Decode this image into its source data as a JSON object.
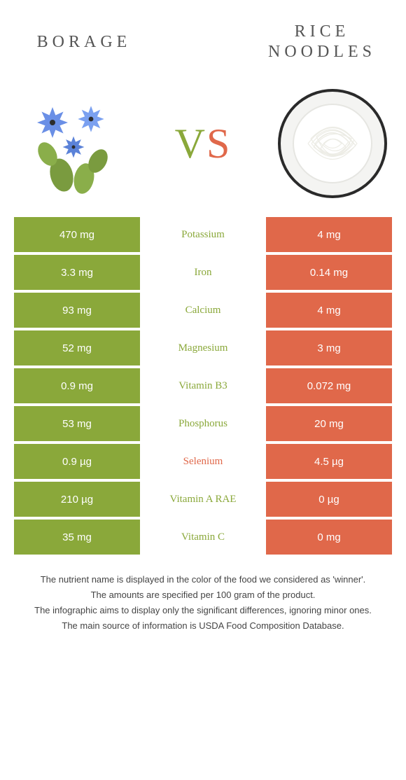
{
  "colors": {
    "left": "#8aa83a",
    "right": "#e0684a",
    "title": "#555555",
    "foot": "#444444",
    "bg": "#ffffff"
  },
  "header": {
    "left_title": "BORAGE",
    "right_title": "RICE NOODLES",
    "vs_v": "V",
    "vs_s": "S"
  },
  "rows": [
    {
      "nutrient": "Potassium",
      "left": "470 mg",
      "right": "4 mg",
      "winner": "left"
    },
    {
      "nutrient": "Iron",
      "left": "3.3 mg",
      "right": "0.14 mg",
      "winner": "left"
    },
    {
      "nutrient": "Calcium",
      "left": "93 mg",
      "right": "4 mg",
      "winner": "left"
    },
    {
      "nutrient": "Magnesium",
      "left": "52 mg",
      "right": "3 mg",
      "winner": "left"
    },
    {
      "nutrient": "Vitamin B3",
      "left": "0.9 mg",
      "right": "0.072 mg",
      "winner": "left"
    },
    {
      "nutrient": "Phosphorus",
      "left": "53 mg",
      "right": "20 mg",
      "winner": "left"
    },
    {
      "nutrient": "Selenium",
      "left": "0.9 µg",
      "right": "4.5 µg",
      "winner": "right"
    },
    {
      "nutrient": "Vitamin A RAE",
      "left": "210 µg",
      "right": "0 µg",
      "winner": "left"
    },
    {
      "nutrient": "Vitamin C",
      "left": "35 mg",
      "right": "0 mg",
      "winner": "left"
    }
  ],
  "footnotes": [
    "The nutrient name is displayed in the color of the food we considered as 'winner'.",
    "The amounts are specified per 100 gram of the product.",
    "The infographic aims to display only the significant differences, ignoring minor ones.",
    "The main source of information is USDA Food Composition Database."
  ]
}
